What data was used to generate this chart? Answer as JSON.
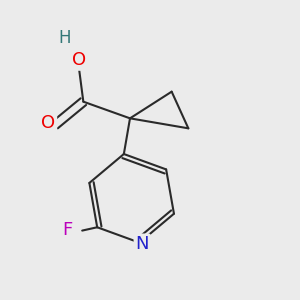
{
  "background_color": "#ebebeb",
  "bond_color": "#2a2a2a",
  "bond_width": 1.5,
  "atom_colors": {
    "O": "#ee0000",
    "N": "#2222cc",
    "F": "#bb00bb",
    "H": "#337777",
    "C": "#2a2a2a"
  },
  "font_size": 12,
  "figsize": [
    3.0,
    3.0
  ],
  "dpi": 100
}
